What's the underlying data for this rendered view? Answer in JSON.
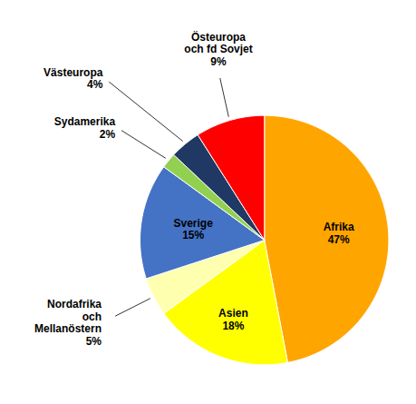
{
  "chart_data": {
    "type": "pie",
    "categories": [
      "Afrika",
      "Asien",
      "Nordafrika\noch\nMellanöstern",
      "Sverige",
      "Sydamerika",
      "Västeuropa",
      "Östeuropa\noch fd Sovjet"
    ],
    "values": [
      47,
      18,
      5,
      15,
      2,
      4,
      9
    ],
    "value_labels": [
      "47%",
      "18%",
      "5%",
      "15%",
      "2%",
      "4%",
      "9%"
    ],
    "colors": [
      "#FFA500",
      "#FFFF00",
      "#FFFFB0",
      "#4472C4",
      "#92D050",
      "#1F3864",
      "#FF0000"
    ],
    "data_labels": true
  }
}
